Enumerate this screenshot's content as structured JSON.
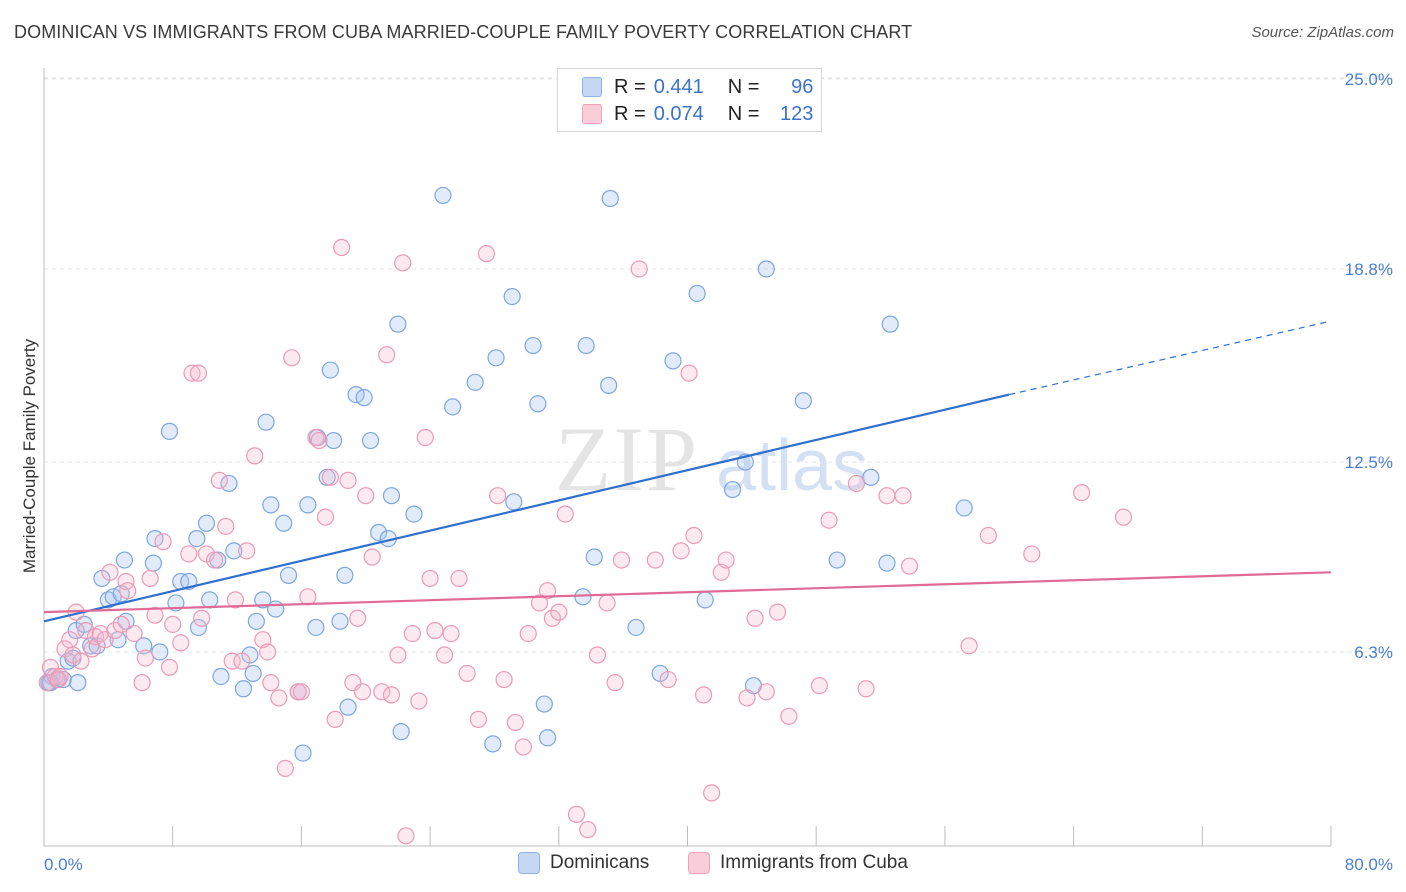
{
  "title": "DOMINICAN VS IMMIGRANTS FROM CUBA MARRIED-COUPLE FAMILY POVERTY CORRELATION CHART",
  "source": "Source: ZipAtlas.com",
  "watermark": {
    "zip": "ZIP",
    "atlas": "atlas"
  },
  "legend": {
    "r_label": "R =",
    "n_label": "N =",
    "rows": [
      {
        "r": "0.441",
        "n": "96"
      },
      {
        "r": "0.074",
        "n": "123"
      }
    ]
  },
  "chart_data": {
    "type": "scatter",
    "title": "DOMINICAN VS IMMIGRANTS FROM CUBA MARRIED-COUPLE FAMILY POVERTY CORRELATION CHART",
    "ylabel": "Married-Couple Family Poverty",
    "xlabel": "",
    "xlim": [
      0,
      80
    ],
    "ylim": [
      0,
      25
    ],
    "x_tick_labels": [
      "0.0%",
      "80.0%"
    ],
    "y_ticks": [
      6.3,
      12.5,
      18.8,
      25.0
    ],
    "y_tick_labels": [
      "6.3%",
      "12.5%",
      "18.8%",
      "25.0%"
    ],
    "grid": true,
    "legend_position": "bottom",
    "colors": {
      "Dominicans": "#6f9fe0",
      "Immigrants from Cuba": "#ef8fae"
    },
    "line_colors": {
      "Dominicans": "#2f6fcf",
      "Immigrants from Cuba": "#e06a96"
    },
    "series": [
      {
        "name": "Dominicans",
        "r": 0.441,
        "n": 96,
        "trend": {
          "x": [
            0,
            60
          ],
          "y": [
            7.3,
            14.7
          ],
          "dashed_to": [
            80,
            17.1
          ]
        },
        "points": [
          [
            0.3,
            5.3
          ],
          [
            0.5,
            5.5
          ],
          [
            0.8,
            5.4
          ],
          [
            1.2,
            5.4
          ],
          [
            1.5,
            6.0
          ],
          [
            1.8,
            6.1
          ],
          [
            2.0,
            7.0
          ],
          [
            2.1,
            5.3
          ],
          [
            2.5,
            7.2
          ],
          [
            2.9,
            6.5
          ],
          [
            3.3,
            6.5
          ],
          [
            3.6,
            8.7
          ],
          [
            4.0,
            8.0
          ],
          [
            4.3,
            8.1
          ],
          [
            4.6,
            6.7
          ],
          [
            5.0,
            9.3
          ],
          [
            5.1,
            7.3
          ],
          [
            6.2,
            6.5
          ],
          [
            6.8,
            9.2
          ],
          [
            6.9,
            10.0
          ],
          [
            7.2,
            6.3
          ],
          [
            7.8,
            13.5
          ],
          [
            8.2,
            7.9
          ],
          [
            8.5,
            8.6
          ],
          [
            9.0,
            8.6
          ],
          [
            9.5,
            10.0
          ],
          [
            9.6,
            7.1
          ],
          [
            10.1,
            10.5
          ],
          [
            10.3,
            8.0
          ],
          [
            10.8,
            9.3
          ],
          [
            11.0,
            5.5
          ],
          [
            11.5,
            11.8
          ],
          [
            11.8,
            9.6
          ],
          [
            12.4,
            5.1
          ],
          [
            12.8,
            6.2
          ],
          [
            13.0,
            5.6
          ],
          [
            13.2,
            7.3
          ],
          [
            13.6,
            8.0
          ],
          [
            13.8,
            13.8
          ],
          [
            14.1,
            11.1
          ],
          [
            14.4,
            7.7
          ],
          [
            14.9,
            10.5
          ],
          [
            15.2,
            8.8
          ],
          [
            15.8,
            5.0
          ],
          [
            16.1,
            3.0
          ],
          [
            16.4,
            11.1
          ],
          [
            16.9,
            7.1
          ],
          [
            17.0,
            13.3
          ],
          [
            17.6,
            12.0
          ],
          [
            17.8,
            15.5
          ],
          [
            18.0,
            13.2
          ],
          [
            18.4,
            7.3
          ],
          [
            18.7,
            8.8
          ],
          [
            18.9,
            4.5
          ],
          [
            19.4,
            14.7
          ],
          [
            19.9,
            14.6
          ],
          [
            20.3,
            13.2
          ],
          [
            20.8,
            10.2
          ],
          [
            21.4,
            10.0
          ],
          [
            21.6,
            11.4
          ],
          [
            22.0,
            17.0
          ],
          [
            22.2,
            3.7
          ],
          [
            23.0,
            10.8
          ],
          [
            24.8,
            21.2
          ],
          [
            25.4,
            14.3
          ],
          [
            26.8,
            15.1
          ],
          [
            27.9,
            3.3
          ],
          [
            28.1,
            15.9
          ],
          [
            29.1,
            17.9
          ],
          [
            29.2,
            11.2
          ],
          [
            30.4,
            16.3
          ],
          [
            30.7,
            14.4
          ],
          [
            31.1,
            4.6
          ],
          [
            31.3,
            3.5
          ],
          [
            33.5,
            8.1
          ],
          [
            33.7,
            16.3
          ],
          [
            34.2,
            9.4
          ],
          [
            35.1,
            15.0
          ],
          [
            35.2,
            21.1
          ],
          [
            36.8,
            7.1
          ],
          [
            38.3,
            5.6
          ],
          [
            39.1,
            15.8
          ],
          [
            40.6,
            18.0
          ],
          [
            41.1,
            8.0
          ],
          [
            42.8,
            11.6
          ],
          [
            43.6,
            12.5
          ],
          [
            44.1,
            5.2
          ],
          [
            44.9,
            18.8
          ],
          [
            47.2,
            14.5
          ],
          [
            49.3,
            9.3
          ],
          [
            51.4,
            12.0
          ],
          [
            52.4,
            9.2
          ],
          [
            52.6,
            17.0
          ],
          [
            57.2,
            11.0
          ],
          [
            0.4,
            5.3
          ],
          [
            4.8,
            8.2
          ]
        ]
      },
      {
        "name": "Immigrants from Cuba",
        "r": 0.074,
        "n": 123,
        "trend": {
          "x": [
            0,
            80
          ],
          "y": [
            7.6,
            8.9
          ]
        },
        "points": [
          [
            0.2,
            5.3
          ],
          [
            0.4,
            5.8
          ],
          [
            0.7,
            5.5
          ],
          [
            1.0,
            5.5
          ],
          [
            1.3,
            6.4
          ],
          [
            1.6,
            6.7
          ],
          [
            1.8,
            6.2
          ],
          [
            2.0,
            7.6
          ],
          [
            2.3,
            6.0
          ],
          [
            2.6,
            7.0
          ],
          [
            3.0,
            6.4
          ],
          [
            3.2,
            6.8
          ],
          [
            3.5,
            6.9
          ],
          [
            3.8,
            6.7
          ],
          [
            4.1,
            8.9
          ],
          [
            4.4,
            7.0
          ],
          [
            4.8,
            7.2
          ],
          [
            5.1,
            8.6
          ],
          [
            5.2,
            8.3
          ],
          [
            5.6,
            6.9
          ],
          [
            6.1,
            5.3
          ],
          [
            6.3,
            6.1
          ],
          [
            6.6,
            8.7
          ],
          [
            6.9,
            7.5
          ],
          [
            7.4,
            9.9
          ],
          [
            7.8,
            5.8
          ],
          [
            8.0,
            7.2
          ],
          [
            8.5,
            6.6
          ],
          [
            9.0,
            9.5
          ],
          [
            9.2,
            15.4
          ],
          [
            9.6,
            15.4
          ],
          [
            9.8,
            7.4
          ],
          [
            10.1,
            9.5
          ],
          [
            10.6,
            9.3
          ],
          [
            10.9,
            11.9
          ],
          [
            11.3,
            10.4
          ],
          [
            11.7,
            6.0
          ],
          [
            11.9,
            8.0
          ],
          [
            12.3,
            6.0
          ],
          [
            12.6,
            9.6
          ],
          [
            13.1,
            12.7
          ],
          [
            13.6,
            6.7
          ],
          [
            13.9,
            6.3
          ],
          [
            14.1,
            5.3
          ],
          [
            14.6,
            4.8
          ],
          [
            15.0,
            2.5
          ],
          [
            15.4,
            15.9
          ],
          [
            15.8,
            5.0
          ],
          [
            16.0,
            5.0
          ],
          [
            16.4,
            8.1
          ],
          [
            16.9,
            13.3
          ],
          [
            17.1,
            13.2
          ],
          [
            17.5,
            10.7
          ],
          [
            17.8,
            12.0
          ],
          [
            18.1,
            4.1
          ],
          [
            18.5,
            19.5
          ],
          [
            18.9,
            11.9
          ],
          [
            19.2,
            5.3
          ],
          [
            19.5,
            7.4
          ],
          [
            19.8,
            5.0
          ],
          [
            20.0,
            11.4
          ],
          [
            20.4,
            9.4
          ],
          [
            21.0,
            5.0
          ],
          [
            21.3,
            16.0
          ],
          [
            21.6,
            4.9
          ],
          [
            22.0,
            6.2
          ],
          [
            22.3,
            19.0
          ],
          [
            22.9,
            6.9
          ],
          [
            23.3,
            4.7
          ],
          [
            23.7,
            13.3
          ],
          [
            24.0,
            8.7
          ],
          [
            24.3,
            7.0
          ],
          [
            24.9,
            6.2
          ],
          [
            25.3,
            6.9
          ],
          [
            25.8,
            8.7
          ],
          [
            26.3,
            5.6
          ],
          [
            27.0,
            4.1
          ],
          [
            27.5,
            19.3
          ],
          [
            28.2,
            11.4
          ],
          [
            28.6,
            5.4
          ],
          [
            29.3,
            4.0
          ],
          [
            29.8,
            3.2
          ],
          [
            30.1,
            6.9
          ],
          [
            30.8,
            7.9
          ],
          [
            31.3,
            8.3
          ],
          [
            31.6,
            7.4
          ],
          [
            32.0,
            7.6
          ],
          [
            32.4,
            10.8
          ],
          [
            33.1,
            1.0
          ],
          [
            33.8,
            0.5
          ],
          [
            34.4,
            6.2
          ],
          [
            35.0,
            7.9
          ],
          [
            35.5,
            5.3
          ],
          [
            35.9,
            9.3
          ],
          [
            37.0,
            18.8
          ],
          [
            38.0,
            9.3
          ],
          [
            38.8,
            5.4
          ],
          [
            39.6,
            9.6
          ],
          [
            40.1,
            15.4
          ],
          [
            40.4,
            10.1
          ],
          [
            41.0,
            4.9
          ],
          [
            41.5,
            1.7
          ],
          [
            42.1,
            8.9
          ],
          [
            42.4,
            9.3
          ],
          [
            43.7,
            4.8
          ],
          [
            44.2,
            7.4
          ],
          [
            44.9,
            5.0
          ],
          [
            45.6,
            7.6
          ],
          [
            46.3,
            4.2
          ],
          [
            48.2,
            5.2
          ],
          [
            48.8,
            10.6
          ],
          [
            50.5,
            11.8
          ],
          [
            51.1,
            5.1
          ],
          [
            52.4,
            11.4
          ],
          [
            53.4,
            11.4
          ],
          [
            53.8,
            9.1
          ],
          [
            57.5,
            6.5
          ],
          [
            58.7,
            10.1
          ],
          [
            61.4,
            9.5
          ],
          [
            64.5,
            11.5
          ],
          [
            67.1,
            10.7
          ],
          [
            22.5,
            0.3
          ],
          [
            0.9,
            5.4
          ]
        ]
      }
    ]
  }
}
